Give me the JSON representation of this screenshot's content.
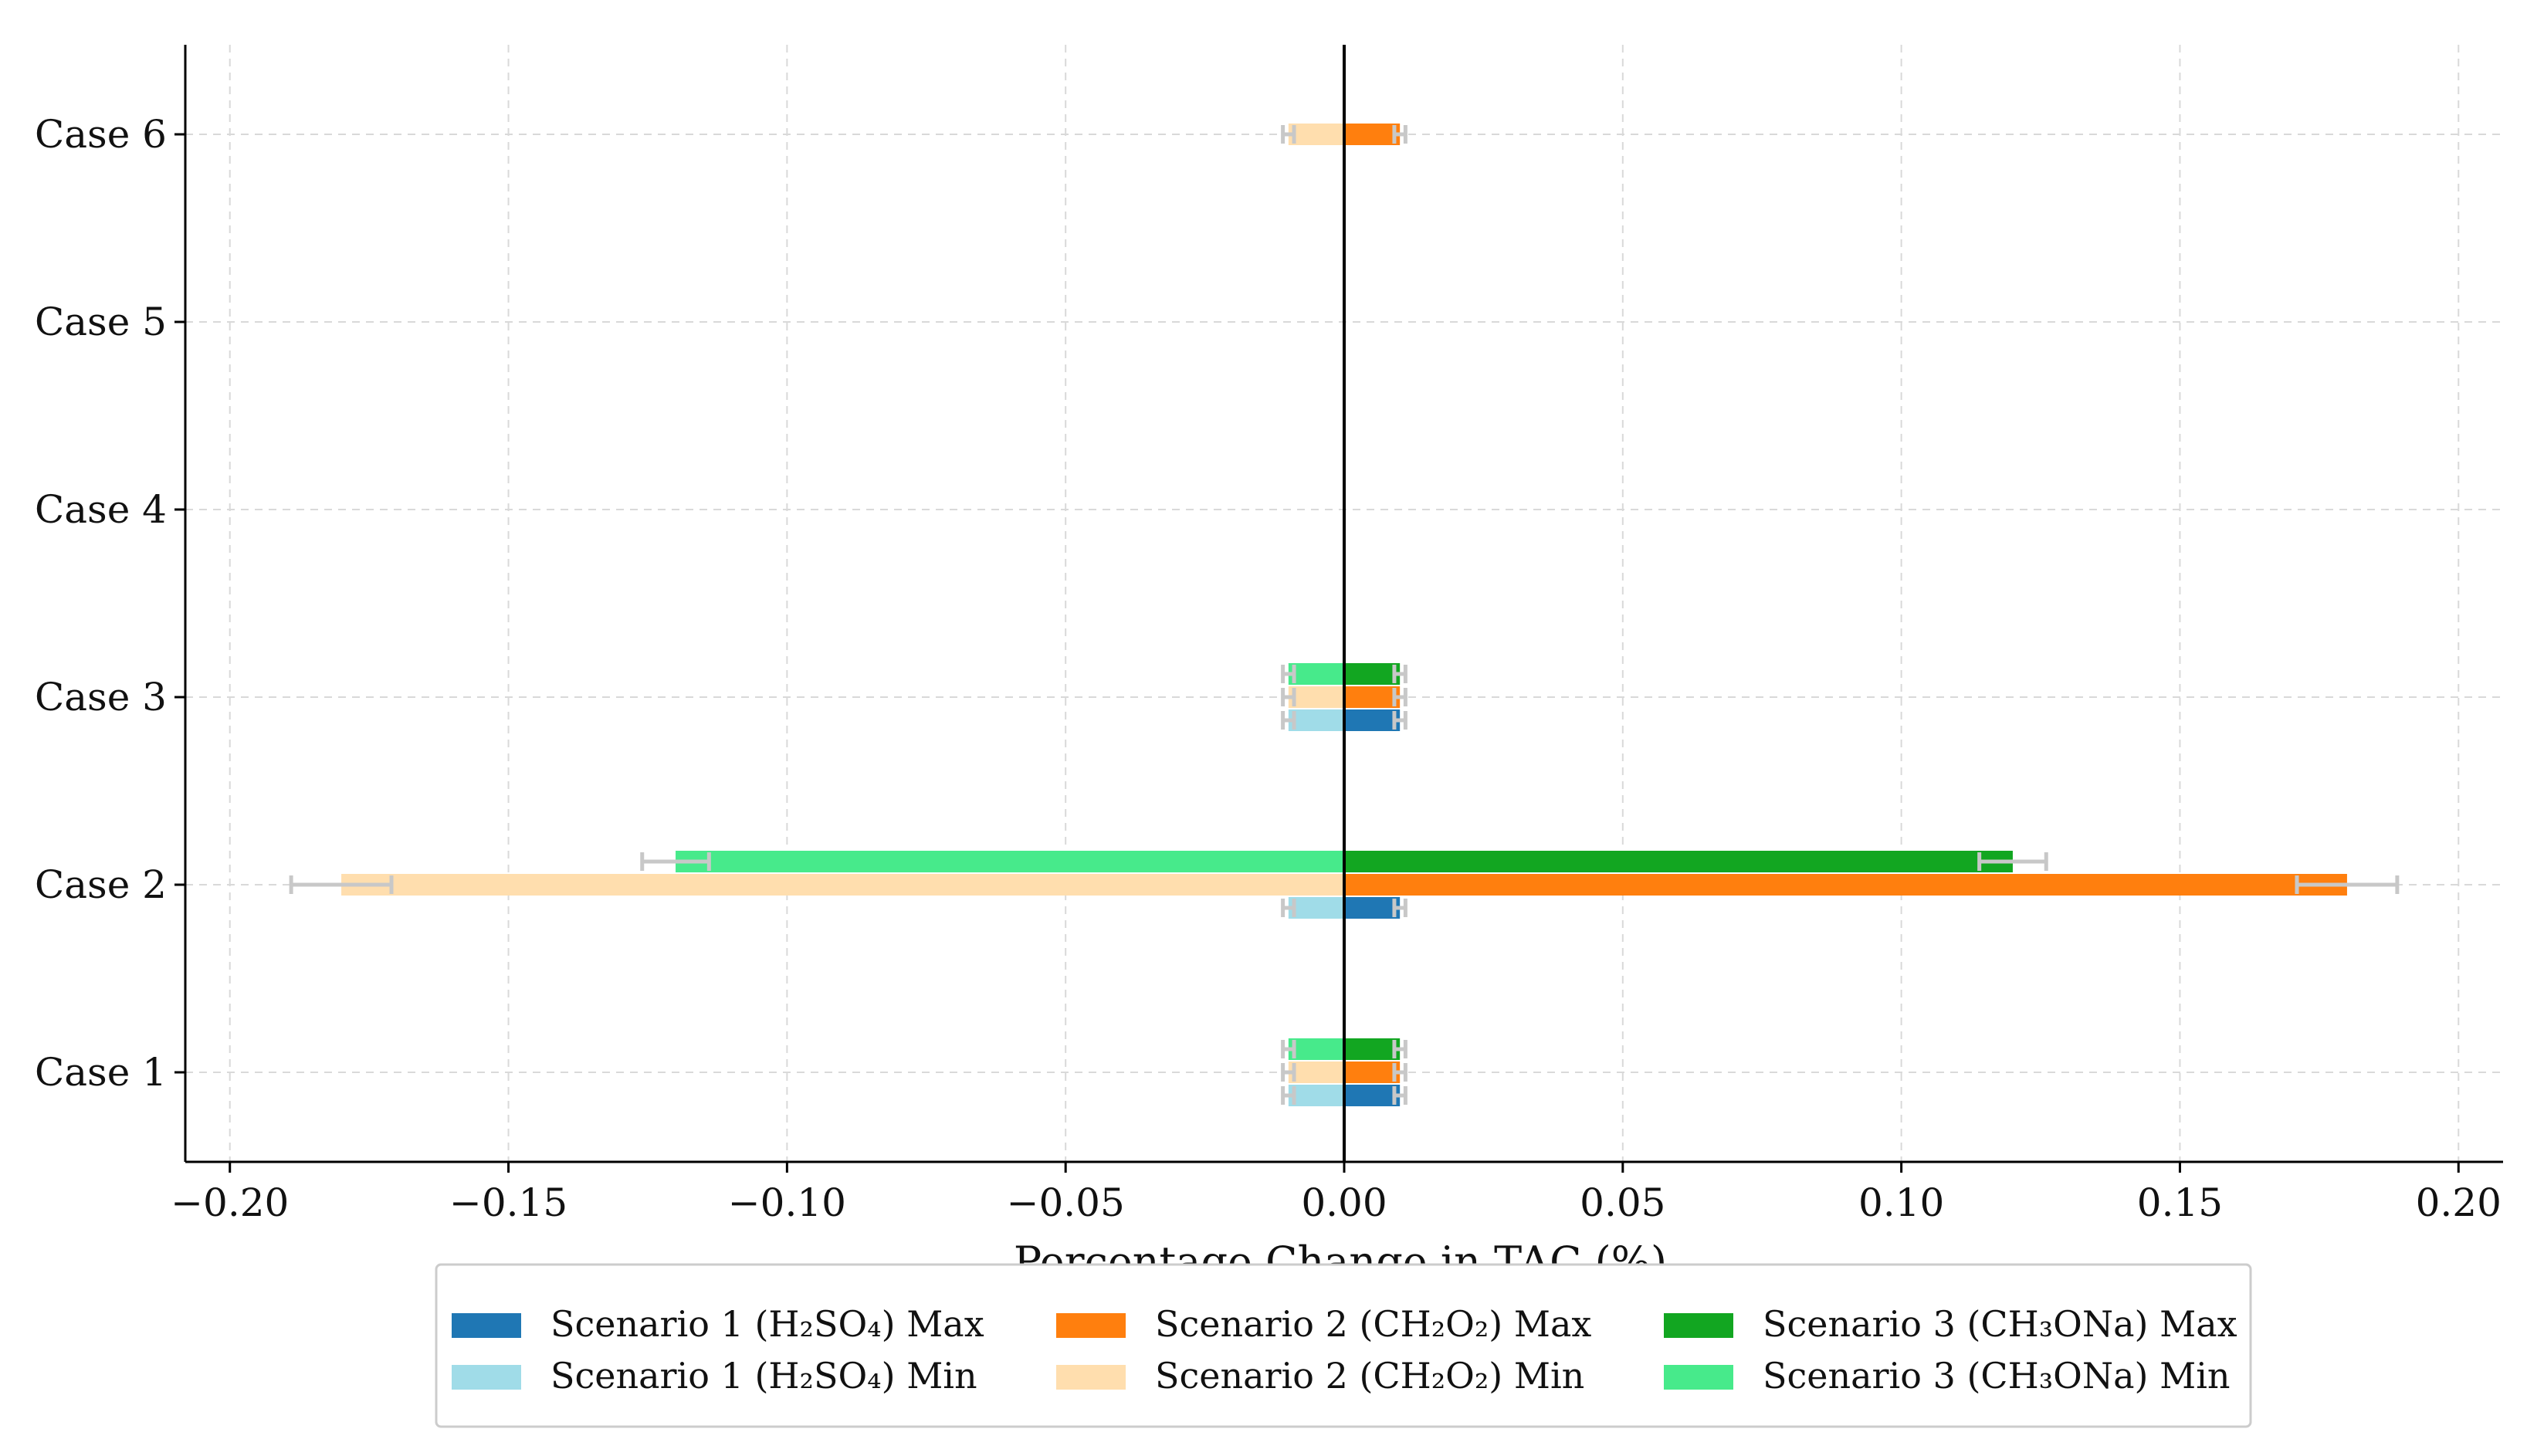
{
  "chart_data": {
    "type": "bar",
    "orientation": "horizontal",
    "title": "",
    "xlabel": "Percentage Change in TAC (%)",
    "ylabel": "",
    "categories": [
      "Case 1",
      "Case 2",
      "Case 3",
      "Case 4",
      "Case 5",
      "Case 6"
    ],
    "xlim": [
      -0.208,
      0.208
    ],
    "x_ticks": [
      "−0.20",
      "−0.15",
      "−0.10",
      "−0.05",
      "0.00",
      "0.05",
      "0.10",
      "0.15",
      "0.20"
    ],
    "x_tick_values": [
      -0.2,
      -0.15,
      -0.1,
      -0.05,
      0.0,
      0.05,
      0.1,
      0.15,
      0.2
    ],
    "grid": true,
    "legend_position": "bottom-center",
    "series": [
      {
        "name": "Scenario 1 (H₂SO₄) Max",
        "color": "#1f77b4",
        "values": [
          0.01,
          0.01,
          0.01,
          0,
          0,
          0
        ],
        "error": [
          0.001,
          0.001,
          0.001,
          0,
          0,
          0
        ]
      },
      {
        "name": "Scenario 1 (H₂SO₄) Min",
        "color": "#a0dce8",
        "values": [
          -0.01,
          -0.01,
          -0.01,
          0,
          0,
          0
        ],
        "error": [
          0.001,
          0.001,
          0.001,
          0,
          0,
          0
        ]
      },
      {
        "name": "Scenario 2 (CH₂O₂) Max",
        "color": "#ff7f0e",
        "values": [
          0.01,
          0.18,
          0.01,
          0,
          0,
          0.01
        ],
        "error": [
          0.001,
          0.009,
          0.001,
          0,
          0,
          0.001
        ]
      },
      {
        "name": "Scenario 2 (CH₂O₂) Min",
        "color": "#ffdeae",
        "values": [
          -0.01,
          -0.18,
          -0.01,
          0,
          0,
          -0.01
        ],
        "error": [
          0.001,
          0.009,
          0.001,
          0,
          0,
          0.001
        ]
      },
      {
        "name": "Scenario 3 (CH₃ONa) Max",
        "color": "#12a621",
        "values": [
          0.01,
          0.12,
          0.01,
          0,
          0,
          0
        ],
        "error": [
          0.001,
          0.006,
          0.001,
          0,
          0,
          0
        ]
      },
      {
        "name": "Scenario 3 (CH₃ONa) Min",
        "color": "#47ea8b",
        "values": [
          -0.01,
          -0.12,
          -0.01,
          0,
          0,
          0
        ],
        "error": [
          0.001,
          0.006,
          0.001,
          0,
          0,
          0
        ]
      }
    ]
  }
}
